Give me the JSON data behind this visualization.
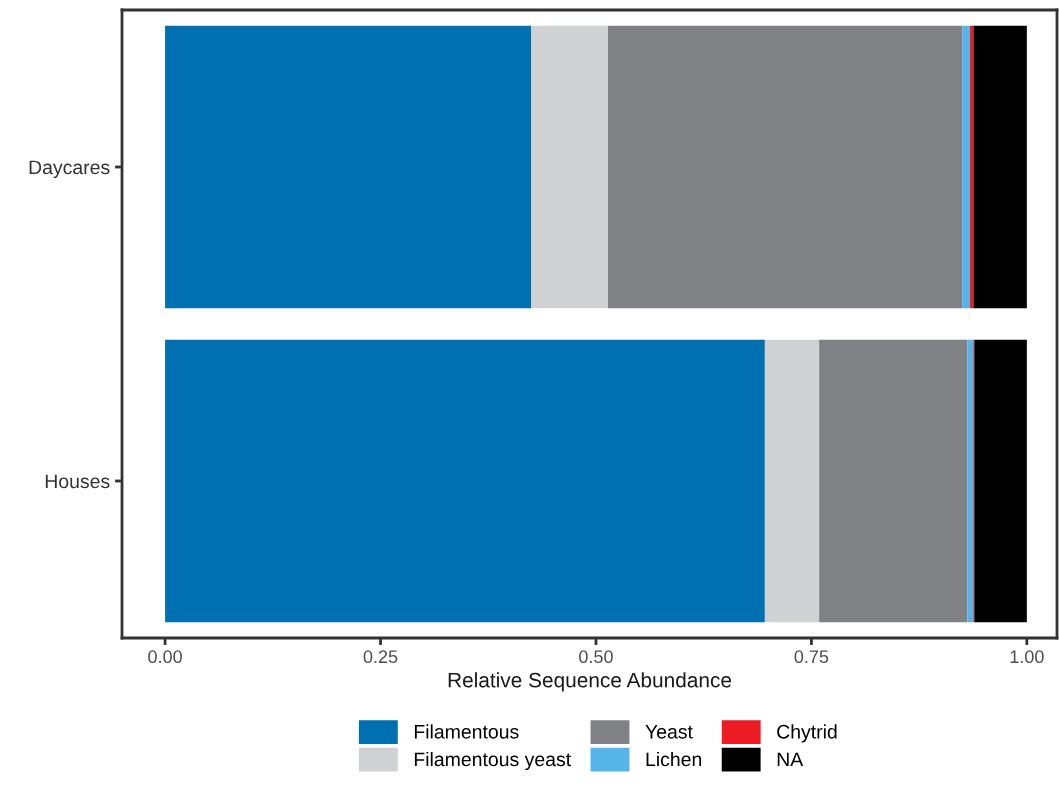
{
  "chart_data": {
    "type": "bar",
    "orientation": "horizontal",
    "stacked": true,
    "xlabel": "Relative Sequence Abundance",
    "categories": [
      "Daycares",
      "Houses"
    ],
    "series": [
      {
        "name": "Filamentous",
        "color": "#0070b0",
        "values": [
          0.425,
          0.696
        ]
      },
      {
        "name": "Filamentous yeast",
        "color": "#d0d1d3",
        "values": [
          0.089,
          0.063
        ]
      },
      {
        "name": "Yeast",
        "color": "#808184",
        "values": [
          0.411,
          0.172
        ]
      },
      {
        "name": "Lichen",
        "color": "#56b4e9",
        "values": [
          0.009,
          0.007
        ]
      },
      {
        "name": "Chytrid",
        "color": "#ed1c24",
        "values": [
          0.004,
          0.001
        ]
      },
      {
        "name": "NA",
        "color": "#000000",
        "values": [
          0.062,
          0.061
        ]
      }
    ],
    "xlim": [
      -0.05,
      1.035
    ],
    "xticks": [
      {
        "value": 0,
        "label": "0.00"
      },
      {
        "value": 0.25,
        "label": "0.25"
      },
      {
        "value": 0.5,
        "label": "0.50"
      },
      {
        "value": 0.75,
        "label": "0.75"
      },
      {
        "value": 1,
        "label": "1.00"
      }
    ],
    "grid": false,
    "legend": "bottom"
  }
}
